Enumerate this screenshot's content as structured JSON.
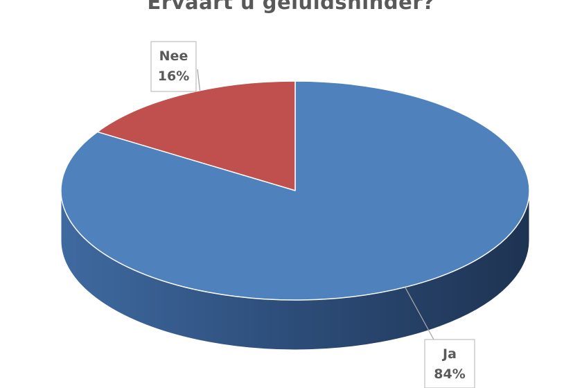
{
  "chart_data": {
    "type": "pie",
    "title": "Ervaart u geluidshinder?",
    "categories": [
      "Ja",
      "Nee"
    ],
    "values": [
      84,
      16
    ],
    "value_labels": [
      "84%",
      "16%"
    ],
    "colors": [
      "#4f81bd",
      "#c0504d"
    ],
    "style": "3d",
    "legend": "none"
  }
}
